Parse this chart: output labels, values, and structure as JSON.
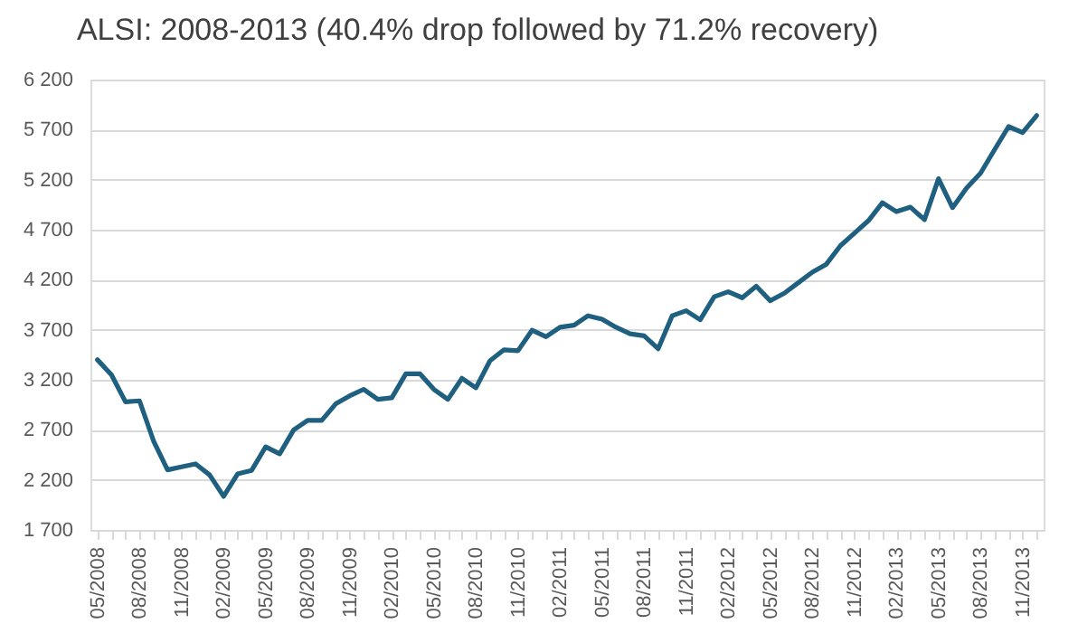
{
  "chart_data": {
    "type": "line",
    "title": "ALSI: 2008-2013 (40.4% drop followed by 71.2% recovery)",
    "categories": [
      "05/2008",
      null,
      null,
      "08/2008",
      null,
      null,
      "11/2008",
      null,
      null,
      "02/2009",
      null,
      null,
      "05/2009",
      null,
      null,
      "08/2009",
      null,
      null,
      "11/2009",
      null,
      null,
      "02/2010",
      null,
      null,
      "05/2010",
      null,
      null,
      "08/2010",
      null,
      null,
      "11/2010",
      null,
      null,
      "02/2011",
      null,
      null,
      "05/2011",
      null,
      null,
      "08/2011",
      null,
      null,
      "11/2011",
      null,
      null,
      "02/2012",
      null,
      null,
      "05/2012",
      null,
      null,
      "08/2012",
      null,
      null,
      "11/2012",
      null,
      null,
      "02/2013",
      null,
      null,
      "05/2013",
      null,
      null,
      "08/2013",
      null,
      null,
      "11/2013",
      null
    ],
    "series": [
      {
        "color": "#1f5f7f",
        "values": [
          3400,
          3250,
          2980,
          2990,
          2590,
          2300,
          2330,
          2360,
          2250,
          2035,
          2260,
          2295,
          2530,
          2460,
          2700,
          2795,
          2795,
          2960,
          3040,
          3105,
          3005,
          3020,
          3260,
          3260,
          3105,
          3005,
          3215,
          3120,
          3390,
          3500,
          3490,
          3695,
          3630,
          3725,
          3745,
          3840,
          3805,
          3725,
          3660,
          3640,
          3510,
          3840,
          3890,
          3800,
          4030,
          4080,
          4020,
          4135,
          3990,
          4065,
          4170,
          4275,
          4355,
          4540,
          4665,
          4790,
          4970,
          4880,
          4925,
          4800,
          5210,
          4920,
          5115,
          5265,
          5500,
          5730,
          5670,
          5840
        ]
      }
    ],
    "ylim": [
      1700,
      6200
    ],
    "yticks": [
      {
        "value": 1700,
        "label": "1 700"
      },
      {
        "value": 2200,
        "label": "2 200"
      },
      {
        "value": 2700,
        "label": "2 700"
      },
      {
        "value": 3200,
        "label": "3 200"
      },
      {
        "value": 3700,
        "label": "3 700"
      },
      {
        "value": 4200,
        "label": "4 200"
      },
      {
        "value": 4700,
        "label": "4 700"
      },
      {
        "value": 5200,
        "label": "5 200"
      },
      {
        "value": 5700,
        "label": "5 700"
      },
      {
        "value": 6200,
        "label": "6 200"
      }
    ],
    "grid": "y",
    "marker": "none",
    "line_style": "solid"
  }
}
